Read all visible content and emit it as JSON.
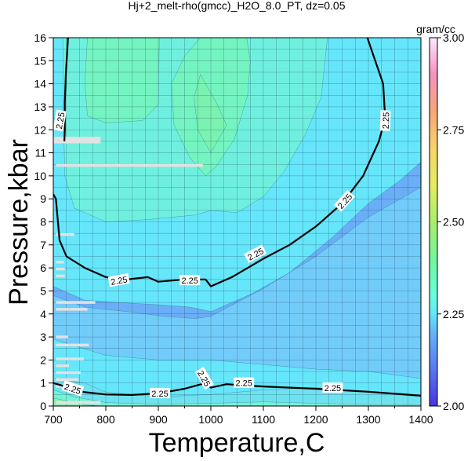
{
  "chart_data": {
    "type": "heatmap",
    "title": "Hj+2_melt-rho(gmcc)_H2O_8.0_PT, dz=0.05",
    "xlabel": "Temperature,C",
    "ylabel": "Pressure,kbar",
    "xlim": [
      700,
      1400
    ],
    "ylim": [
      0,
      16
    ],
    "x_ticks": [
      700,
      800,
      900,
      1000,
      1100,
      1200,
      1300,
      1400
    ],
    "y_ticks": [
      0,
      1,
      2,
      3,
      4,
      5,
      6,
      7,
      8,
      9,
      10,
      11,
      12,
      13,
      14,
      15,
      16
    ],
    "grid": true,
    "colorbar": {
      "unit": "gram/cc",
      "range": [
        2.0,
        3.0
      ],
      "ticks": [
        2.0,
        2.25,
        2.5,
        2.75,
        3.0
      ],
      "tick_labels": [
        "2.00",
        "2.25",
        "2.50",
        "2.75",
        "3.00"
      ],
      "stops": [
        {
          "value": 2.0,
          "color": "#4a35e0"
        },
        {
          "value": 2.1,
          "color": "#5a78f0"
        },
        {
          "value": 2.2,
          "color": "#64b4f8"
        },
        {
          "value": 2.25,
          "color": "#66e6fa"
        },
        {
          "value": 2.3,
          "color": "#66ffdc"
        },
        {
          "value": 2.4,
          "color": "#76f59c"
        },
        {
          "value": 2.5,
          "color": "#a9ee6e"
        },
        {
          "value": 2.6,
          "color": "#e4ec62"
        },
        {
          "value": 2.7,
          "color": "#f6d46c"
        },
        {
          "value": 2.8,
          "color": "#f5a878"
        },
        {
          "value": 2.9,
          "color": "#f592bd"
        },
        {
          "value": 3.0,
          "color": "#ffe8ff"
        }
      ]
    },
    "bands": [
      {
        "level": 2.05,
        "color": "#5f8ff2",
        "points": [
          [
            1215,
            4.6
          ],
          [
            1270,
            5.3
          ],
          [
            1340,
            6.1
          ],
          [
            1400,
            6.7
          ],
          [
            1400,
            3.0
          ],
          [
            1350,
            2.55
          ],
          [
            1270,
            2.45
          ],
          [
            1225,
            2.85
          ],
          [
            1210,
            3.7
          ]
        ]
      },
      {
        "level": 2.1,
        "color": "#6aaef7",
        "points": [
          [
            700,
            5.2
          ],
          [
            760,
            4.6
          ],
          [
            820,
            4.5
          ],
          [
            900,
            4.4
          ],
          [
            960,
            4.3
          ],
          [
            1000,
            4.1
          ],
          [
            1080,
            4.9
          ],
          [
            1150,
            5.8
          ],
          [
            1230,
            7.3
          ],
          [
            1300,
            8.8
          ],
          [
            1360,
            9.8
          ],
          [
            1400,
            10.6
          ],
          [
            1400,
            2.0
          ],
          [
            1300,
            2.3
          ],
          [
            1200,
            2.6
          ],
          [
            1000,
            2.6
          ],
          [
            910,
            2.2
          ],
          [
            830,
            2.4
          ],
          [
            760,
            2.9
          ],
          [
            700,
            3.3
          ]
        ]
      },
      {
        "level": 2.2,
        "color": "#72ccfa",
        "points": [
          [
            700,
            4.8
          ],
          [
            760,
            4.3
          ],
          [
            840,
            4.1
          ],
          [
            910,
            3.9
          ],
          [
            970,
            3.8
          ],
          [
            1000,
            3.9
          ],
          [
            1100,
            5.1
          ],
          [
            1200,
            6.5
          ],
          [
            1300,
            8.2
          ],
          [
            1400,
            9.5
          ],
          [
            1400,
            1.2
          ],
          [
            1300,
            1.5
          ],
          [
            1200,
            1.6
          ],
          [
            1100,
            1.8
          ],
          [
            1000,
            2.0
          ],
          [
            900,
            2.0
          ],
          [
            800,
            2.2
          ],
          [
            700,
            2.9
          ]
        ]
      },
      {
        "level": 2.3,
        "color": "#6ff0de",
        "points": [
          [
            718,
            16
          ],
          [
            720,
            12
          ],
          [
            722,
            10
          ],
          [
            740,
            8.6
          ],
          [
            800,
            8.0
          ],
          [
            880,
            8.1
          ],
          [
            970,
            8.3
          ],
          [
            1000,
            8.5
          ],
          [
            1050,
            8.4
          ],
          [
            1100,
            9.1
          ],
          [
            1140,
            10.2
          ],
          [
            1180,
            11.8
          ],
          [
            1210,
            13.4
          ],
          [
            1222,
            16
          ]
        ]
      },
      {
        "level": 2.35,
        "color": "#74f4c0",
        "points": [
          [
            765,
            16
          ],
          [
            760,
            14
          ],
          [
            765,
            12.6
          ],
          [
            800,
            12.3
          ],
          [
            870,
            12.4
          ],
          [
            900,
            13.1
          ],
          [
            902,
            16
          ]
        ]
      },
      {
        "level": 2.35,
        "color": "#74f4c0",
        "points": [
          [
            980,
            16
          ],
          [
            950,
            15.2
          ],
          [
            925,
            14.0
          ],
          [
            930,
            12.2
          ],
          [
            960,
            10.8
          ],
          [
            990,
            10.0
          ],
          [
            1010,
            10.4
          ],
          [
            1045,
            11.6
          ],
          [
            1070,
            13.5
          ],
          [
            1075,
            15.0
          ],
          [
            1068,
            16
          ]
        ]
      },
      {
        "level": 2.4,
        "color": "#7af2b0",
        "points": [
          [
            980,
            14.4
          ],
          [
            1010,
            13.2
          ],
          [
            1030,
            12.2
          ],
          [
            1000,
            11.0
          ],
          [
            975,
            12.0
          ],
          [
            968,
            13.4
          ]
        ]
      }
    ],
    "lowland_bands": [
      {
        "level": 2.22,
        "color": "#6ee2ef",
        "points": [
          [
            700,
            0
          ],
          [
            700,
            1.2
          ],
          [
            760,
            1.0
          ],
          [
            800,
            0.6
          ],
          [
            900,
            0.4
          ],
          [
            1000,
            0.5
          ],
          [
            1100,
            0.7
          ],
          [
            1200,
            0.8
          ],
          [
            1300,
            0.6
          ],
          [
            1400,
            0.4
          ],
          [
            1400,
            0
          ]
        ]
      },
      {
        "level": 2.28,
        "color": "#72f4d4",
        "points": [
          [
            700,
            0
          ],
          [
            700,
            0.7
          ],
          [
            740,
            0.4
          ],
          [
            800,
            0.15
          ],
          [
            900,
            0.08
          ],
          [
            1000,
            0.12
          ],
          [
            1100,
            0.18
          ],
          [
            1200,
            0.12
          ],
          [
            1300,
            0.06
          ],
          [
            1400,
            0.05
          ],
          [
            1400,
            0
          ]
        ]
      },
      {
        "level": 2.32,
        "color": "#86f0a6",
        "points": [
          [
            700,
            0
          ],
          [
            700,
            0.35
          ],
          [
            730,
            0.2
          ],
          [
            760,
            0.05
          ],
          [
            790,
            0
          ]
        ]
      }
    ],
    "contour_2_25_upper": [
      [
        700,
        9.2
      ],
      [
        705,
        9.0
      ],
      [
        712,
        7.2
      ],
      [
        725,
        6.5
      ],
      [
        760,
        6.0
      ],
      [
        800,
        5.6
      ],
      [
        840,
        5.5
      ],
      [
        880,
        5.6
      ],
      [
        900,
        5.4
      ],
      [
        950,
        5.5
      ],
      [
        990,
        5.5
      ],
      [
        1000,
        5.2
      ],
      [
        1040,
        5.6
      ],
      [
        1100,
        6.4
      ],
      [
        1150,
        7.0
      ],
      [
        1200,
        7.8
      ],
      [
        1250,
        8.8
      ],
      [
        1290,
        10.0
      ],
      [
        1320,
        11.5
      ],
      [
        1332,
        12.5
      ],
      [
        1328,
        14.0
      ],
      [
        1310,
        15.2
      ],
      [
        1298,
        16
      ]
    ],
    "contour_2_25_left": [
      [
        728,
        16
      ],
      [
        724,
        14.5
      ],
      [
        722,
        13.2
      ],
      [
        722,
        12.0
      ],
      [
        721,
        11.5
      ]
    ],
    "contour_2_25_lower": [
      [
        700,
        1.0
      ],
      [
        730,
        0.8
      ],
      [
        760,
        0.6
      ],
      [
        800,
        0.5
      ],
      [
        850,
        0.48
      ],
      [
        900,
        0.55
      ],
      [
        950,
        0.75
      ],
      [
        990,
        1.0
      ],
      [
        1000,
        0.8
      ],
      [
        1030,
        0.95
      ],
      [
        1060,
        0.9
      ],
      [
        1100,
        0.85
      ],
      [
        1200,
        0.75
      ],
      [
        1300,
        0.62
      ],
      [
        1400,
        0.45
      ]
    ],
    "contour_labels": [
      {
        "text": "2.25",
        "x": 713,
        "y": 12.4,
        "angle": -80
      },
      {
        "text": "2.25",
        "x": 825,
        "y": 5.45,
        "angle": -10
      },
      {
        "text": "2.25",
        "x": 960,
        "y": 5.45,
        "angle": 0
      },
      {
        "text": "2.25",
        "x": 1085,
        "y": 6.6,
        "angle": -28
      },
      {
        "text": "2.25",
        "x": 1255,
        "y": 8.9,
        "angle": -48
      },
      {
        "text": "2.25",
        "x": 1333,
        "y": 12.4,
        "angle": -88
      },
      {
        "text": "2.25",
        "x": 737,
        "y": 0.75,
        "angle": 18
      },
      {
        "text": "2.25",
        "x": 903,
        "y": 0.55,
        "angle": 0
      },
      {
        "text": "2.25",
        "x": 987,
        "y": 1.2,
        "angle": 60
      },
      {
        "text": "2.25",
        "x": 1063,
        "y": 1.0,
        "angle": 0
      },
      {
        "text": "2.25",
        "x": 1232,
        "y": 0.78,
        "angle": 0
      }
    ],
    "missing_data_strips": [
      {
        "x0": 700,
        "x1": 790,
        "p": 11.55,
        "h": 0.28
      },
      {
        "x0": 705,
        "x1": 985,
        "p": 10.45,
        "h": 0.12
      },
      {
        "x0": 705,
        "x1": 740,
        "p": 7.45,
        "h": 0.12
      },
      {
        "x0": 705,
        "x1": 720,
        "p": 6.25,
        "h": 0.12
      },
      {
        "x0": 705,
        "x1": 722,
        "p": 5.95,
        "h": 0.12
      },
      {
        "x0": 705,
        "x1": 722,
        "p": 5.65,
        "h": 0.12
      },
      {
        "x0": 705,
        "x1": 780,
        "p": 4.5,
        "h": 0.12
      },
      {
        "x0": 705,
        "x1": 765,
        "p": 4.2,
        "h": 0.12
      },
      {
        "x0": 705,
        "x1": 728,
        "p": 3.0,
        "h": 0.12
      },
      {
        "x0": 705,
        "x1": 768,
        "p": 2.65,
        "h": 0.12
      },
      {
        "x0": 705,
        "x1": 758,
        "p": 2.05,
        "h": 0.12
      },
      {
        "x0": 705,
        "x1": 730,
        "p": 1.75,
        "h": 0.12
      },
      {
        "x0": 705,
        "x1": 752,
        "p": 1.45,
        "h": 0.12
      },
      {
        "x0": 705,
        "x1": 748,
        "p": 1.15,
        "h": 0.12
      },
      {
        "x0": 705,
        "x1": 720,
        "p": 0.85,
        "h": 0.12
      },
      {
        "x0": 705,
        "x1": 790,
        "p": 0.15,
        "h": 0.14
      }
    ]
  }
}
